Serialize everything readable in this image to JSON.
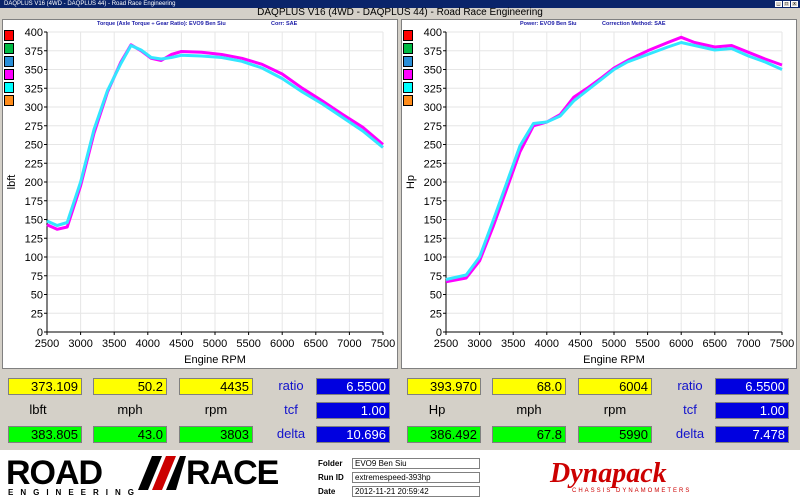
{
  "window": {
    "title": "DAQPLUS V16 (4WD - DAQPLUS 44) - Road Race Engineering"
  },
  "heading": "DAQPLUS V16 (4WD - DAQPLUS 44) - Road Race Engineering",
  "colors": {
    "run1": "#ff00ff",
    "run2": "#33e6ff"
  },
  "swatch_colors": [
    "#ff0000",
    "#00bb44",
    "#2a8fd8",
    "#ff00ff",
    "#00ffff",
    "#ff8c1a"
  ],
  "torque_panel": {
    "sub_title": "Torque (Axle Torque ÷ Gear Ratio): EVO9 Ben Siu",
    "sub_corr": "Corr: SAE",
    "ylabel": "lbft",
    "xlabel": "Engine RPM"
  },
  "power_panel": {
    "sub_title": "Power: EVO9 Ben Siu",
    "sub_corr": "Correction Method: SAE",
    "ylabel": "Hp",
    "xlabel": "Engine RPM"
  },
  "chart_data": [
    {
      "type": "line",
      "xlabel": "Engine RPM",
      "ylabel": "lbft",
      "xlim": [
        2500,
        7500
      ],
      "ylim": [
        0,
        400
      ],
      "x_ticks": [
        "2500",
        "3000",
        "3500",
        "4000",
        "4500",
        "5000",
        "5500",
        "6000",
        "6500",
        "7000",
        "7500"
      ],
      "y_ticks": [
        "0",
        "25",
        "50",
        "75",
        "100",
        "125",
        "150",
        "175",
        "200",
        "225",
        "250",
        "275",
        "300",
        "325",
        "350",
        "375",
        "400"
      ],
      "series": [
        {
          "color": "#ff00ff",
          "points": [
            [
              2500,
              143
            ],
            [
              2650,
              137
            ],
            [
              2800,
              140
            ],
            [
              3000,
              195
            ],
            [
              3200,
              265
            ],
            [
              3400,
              320
            ],
            [
              3600,
              360
            ],
            [
              3750,
              383
            ],
            [
              3900,
              375
            ],
            [
              4050,
              365
            ],
            [
              4200,
              362
            ],
            [
              4350,
              370
            ],
            [
              4500,
              374
            ],
            [
              4800,
              373
            ],
            [
              5100,
              370
            ],
            [
              5400,
              365
            ],
            [
              5700,
              357
            ],
            [
              6000,
              344
            ],
            [
              6300,
              325
            ],
            [
              6600,
              308
            ],
            [
              6900,
              290
            ],
            [
              7200,
              273
            ],
            [
              7500,
              250
            ]
          ]
        },
        {
          "color": "#33e6ff",
          "points": [
            [
              2500,
              148
            ],
            [
              2650,
              142
            ],
            [
              2800,
              146
            ],
            [
              3000,
              200
            ],
            [
              3200,
              270
            ],
            [
              3400,
              322
            ],
            [
              3600,
              358
            ],
            [
              3750,
              382
            ],
            [
              3900,
              376
            ],
            [
              4050,
              366
            ],
            [
              4200,
              364
            ],
            [
              4350,
              366
            ],
            [
              4500,
              369
            ],
            [
              4800,
              368
            ],
            [
              5100,
              366
            ],
            [
              5400,
              361
            ],
            [
              5700,
              352
            ],
            [
              6000,
              338
            ],
            [
              6300,
              320
            ],
            [
              6600,
              304
            ],
            [
              6900,
              286
            ],
            [
              7200,
              268
            ],
            [
              7500,
              246
            ]
          ]
        }
      ]
    },
    {
      "type": "line",
      "xlabel": "Engine RPM",
      "ylabel": "Hp",
      "xlim": [
        2500,
        7500
      ],
      "ylim": [
        0,
        400
      ],
      "x_ticks": [
        "2500",
        "3000",
        "3500",
        "4000",
        "4500",
        "5000",
        "5500",
        "6000",
        "6500",
        "7000",
        "7500"
      ],
      "y_ticks": [
        "0",
        "25",
        "50",
        "75",
        "100",
        "125",
        "150",
        "175",
        "200",
        "225",
        "250",
        "275",
        "300",
        "325",
        "350",
        "375",
        "400"
      ],
      "series": [
        {
          "color": "#ff00ff",
          "points": [
            [
              2500,
              67
            ],
            [
              2800,
              72
            ],
            [
              3000,
              95
            ],
            [
              3200,
              140
            ],
            [
              3400,
              190
            ],
            [
              3600,
              240
            ],
            [
              3800,
              275
            ],
            [
              4000,
              280
            ],
            [
              4200,
              290
            ],
            [
              4400,
              313
            ],
            [
              4600,
              325
            ],
            [
              4800,
              338
            ],
            [
              5000,
              352
            ],
            [
              5200,
              362
            ],
            [
              5500,
              375
            ],
            [
              5800,
              386
            ],
            [
              6000,
              393
            ],
            [
              6200,
              386
            ],
            [
              6500,
              380
            ],
            [
              6750,
              382
            ],
            [
              7000,
              373
            ],
            [
              7250,
              364
            ],
            [
              7500,
              356
            ]
          ]
        },
        {
          "color": "#33e6ff",
          "points": [
            [
              2500,
              70
            ],
            [
              2800,
              76
            ],
            [
              3000,
              100
            ],
            [
              3200,
              148
            ],
            [
              3400,
              198
            ],
            [
              3600,
              248
            ],
            [
              3800,
              278
            ],
            [
              4000,
              280
            ],
            [
              4200,
              288
            ],
            [
              4400,
              308
            ],
            [
              4600,
              322
            ],
            [
              4800,
              336
            ],
            [
              5000,
              350
            ],
            [
              5200,
              360
            ],
            [
              5500,
              370
            ],
            [
              5800,
              380
            ],
            [
              6000,
              386
            ],
            [
              6200,
              382
            ],
            [
              6500,
              376
            ],
            [
              6750,
              378
            ],
            [
              7000,
              368
            ],
            [
              7250,
              360
            ],
            [
              7500,
              350
            ]
          ]
        }
      ]
    }
  ],
  "readouts": {
    "left": {
      "run1_values": [
        "373.109",
        "50.2",
        "4435"
      ],
      "units": [
        "lbft",
        "mph",
        "rpm"
      ],
      "run2_values": [
        "383.805",
        "43.0",
        "3803"
      ],
      "labels": [
        "ratio",
        "tcf",
        "delta"
      ],
      "blue_values": [
        "6.5500",
        "1.00",
        "10.696"
      ]
    },
    "right": {
      "run1_values": [
        "393.970",
        "68.0",
        "6004"
      ],
      "units": [
        "Hp",
        "mph",
        "rpm"
      ],
      "run2_values": [
        "386.492",
        "67.8",
        "5990"
      ],
      "labels": [
        "ratio",
        "tcf",
        "delta"
      ],
      "blue_values": [
        "6.5500",
        "1.00",
        "7.478"
      ]
    }
  },
  "footer": {
    "logo_road": "ROAD",
    "logo_race": "RACE",
    "logo_sub": "ENGINEERING",
    "folder_label": "Folder",
    "folder_value": "EVO9 Ben Siu",
    "runid_label": "Run ID",
    "runid_value": "extremespeed-393hp",
    "date_label": "Date",
    "date_value": "2012-11-21 20:59:42",
    "dyna_logo": "Dynapack",
    "dyna_sub": "CHASSIS DYNAMOMETERS"
  }
}
